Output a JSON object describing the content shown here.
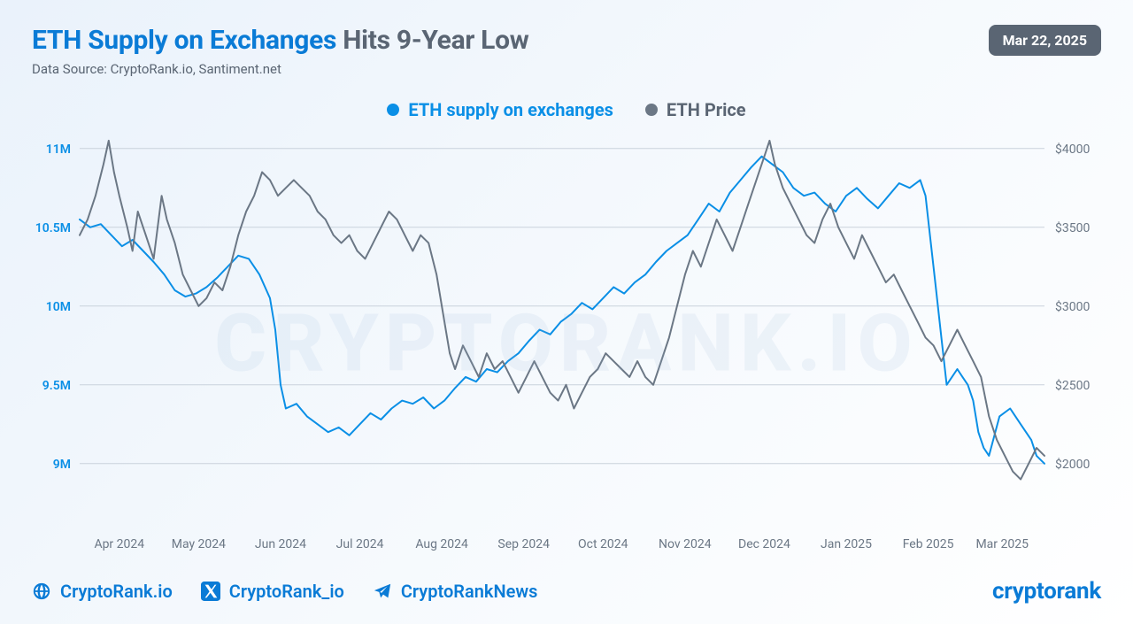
{
  "header": {
    "title_highlight": "ETH Supply on Exchanges",
    "title_rest": "Hits 9-Year Low",
    "subtitle": "Data Source: CryptoRank.io, Santiment.net",
    "date_badge": "Mar 22, 2025"
  },
  "legend": {
    "series1": {
      "label": "ETH supply on exchanges",
      "color": "#0a8fe6"
    },
    "series2": {
      "label": "ETH Price",
      "color": "#6b7785"
    }
  },
  "watermark": "CRYPTORANK.IO",
  "chart": {
    "type": "line-dual-axis",
    "background": "transparent",
    "grid_color": "#c9d2db",
    "x": {
      "domain": [
        0,
        365
      ],
      "ticks": [
        {
          "v": 15,
          "label": "Apr 2024"
        },
        {
          "v": 45,
          "label": "May 2024"
        },
        {
          "v": 76,
          "label": "Jun 2024"
        },
        {
          "v": 106,
          "label": "Jul 2024"
        },
        {
          "v": 137,
          "label": "Aug 2024"
        },
        {
          "v": 168,
          "label": "Sep 2024"
        },
        {
          "v": 198,
          "label": "Oct 2024"
        },
        {
          "v": 229,
          "label": "Nov 2024"
        },
        {
          "v": 259,
          "label": "Dec 2024"
        },
        {
          "v": 290,
          "label": "Jan 2025"
        },
        {
          "v": 321,
          "label": "Feb 2025"
        },
        {
          "v": 349,
          "label": "Mar 2025"
        }
      ]
    },
    "y_left": {
      "label_color": "#0a8fe6",
      "domain": [
        8600000,
        11100000
      ],
      "ticks": [
        {
          "v": 9000000,
          "label": "9M"
        },
        {
          "v": 9500000,
          "label": "9.5M"
        },
        {
          "v": 10000000,
          "label": "10M"
        },
        {
          "v": 10500000,
          "label": "10.5M"
        },
        {
          "v": 11000000,
          "label": "11M"
        }
      ]
    },
    "y_right": {
      "label_color": "#6b7785",
      "domain": [
        1600,
        4100
      ],
      "ticks": [
        {
          "v": 2000,
          "label": "$2000"
        },
        {
          "v": 2500,
          "label": "$2500"
        },
        {
          "v": 3000,
          "label": "$3000"
        },
        {
          "v": 3500,
          "label": "$3500"
        },
        {
          "v": 4000,
          "label": "$4000"
        }
      ]
    },
    "series": [
      {
        "name": "ETH supply on exchanges",
        "axis": "left",
        "color": "#0a8fe6",
        "width": 2,
        "points": [
          [
            0,
            10550000
          ],
          [
            4,
            10500000
          ],
          [
            8,
            10520000
          ],
          [
            12,
            10450000
          ],
          [
            16,
            10380000
          ],
          [
            20,
            10420000
          ],
          [
            24,
            10350000
          ],
          [
            28,
            10280000
          ],
          [
            32,
            10200000
          ],
          [
            36,
            10100000
          ],
          [
            40,
            10060000
          ],
          [
            44,
            10080000
          ],
          [
            48,
            10120000
          ],
          [
            52,
            10180000
          ],
          [
            56,
            10250000
          ],
          [
            60,
            10320000
          ],
          [
            64,
            10300000
          ],
          [
            68,
            10200000
          ],
          [
            72,
            10050000
          ],
          [
            74,
            9850000
          ],
          [
            76,
            9500000
          ],
          [
            78,
            9350000
          ],
          [
            82,
            9380000
          ],
          [
            86,
            9300000
          ],
          [
            90,
            9250000
          ],
          [
            94,
            9200000
          ],
          [
            98,
            9230000
          ],
          [
            102,
            9180000
          ],
          [
            106,
            9250000
          ],
          [
            110,
            9320000
          ],
          [
            114,
            9280000
          ],
          [
            118,
            9350000
          ],
          [
            122,
            9400000
          ],
          [
            126,
            9380000
          ],
          [
            130,
            9420000
          ],
          [
            134,
            9350000
          ],
          [
            138,
            9400000
          ],
          [
            142,
            9480000
          ],
          [
            146,
            9550000
          ],
          [
            150,
            9520000
          ],
          [
            154,
            9600000
          ],
          [
            158,
            9580000
          ],
          [
            162,
            9650000
          ],
          [
            166,
            9700000
          ],
          [
            170,
            9780000
          ],
          [
            174,
            9850000
          ],
          [
            178,
            9820000
          ],
          [
            182,
            9900000
          ],
          [
            186,
            9950000
          ],
          [
            190,
            10020000
          ],
          [
            194,
            9980000
          ],
          [
            198,
            10050000
          ],
          [
            202,
            10120000
          ],
          [
            206,
            10080000
          ],
          [
            210,
            10150000
          ],
          [
            214,
            10200000
          ],
          [
            218,
            10280000
          ],
          [
            222,
            10350000
          ],
          [
            226,
            10400000
          ],
          [
            230,
            10450000
          ],
          [
            234,
            10550000
          ],
          [
            238,
            10650000
          ],
          [
            242,
            10600000
          ],
          [
            246,
            10720000
          ],
          [
            250,
            10800000
          ],
          [
            254,
            10880000
          ],
          [
            258,
            10950000
          ],
          [
            262,
            10900000
          ],
          [
            266,
            10850000
          ],
          [
            270,
            10750000
          ],
          [
            274,
            10700000
          ],
          [
            278,
            10720000
          ],
          [
            282,
            10650000
          ],
          [
            286,
            10600000
          ],
          [
            290,
            10700000
          ],
          [
            294,
            10750000
          ],
          [
            298,
            10680000
          ],
          [
            302,
            10620000
          ],
          [
            306,
            10700000
          ],
          [
            310,
            10780000
          ],
          [
            314,
            10750000
          ],
          [
            318,
            10800000
          ],
          [
            320,
            10700000
          ],
          [
            322,
            10400000
          ],
          [
            324,
            10100000
          ],
          [
            326,
            9800000
          ],
          [
            328,
            9500000
          ],
          [
            330,
            9550000
          ],
          [
            332,
            9600000
          ],
          [
            334,
            9550000
          ],
          [
            336,
            9500000
          ],
          [
            338,
            9400000
          ],
          [
            340,
            9200000
          ],
          [
            342,
            9100000
          ],
          [
            344,
            9050000
          ],
          [
            348,
            9300000
          ],
          [
            352,
            9350000
          ],
          [
            356,
            9250000
          ],
          [
            360,
            9150000
          ],
          [
            362,
            9050000
          ],
          [
            365,
            9000000
          ]
        ]
      },
      {
        "name": "ETH Price",
        "axis": "right",
        "color": "#6b7785",
        "width": 2,
        "points": [
          [
            0,
            3450
          ],
          [
            3,
            3550
          ],
          [
            6,
            3700
          ],
          [
            9,
            3900
          ],
          [
            11,
            4050
          ],
          [
            13,
            3850
          ],
          [
            15,
            3700
          ],
          [
            18,
            3500
          ],
          [
            20,
            3350
          ],
          [
            22,
            3600
          ],
          [
            25,
            3450
          ],
          [
            28,
            3300
          ],
          [
            31,
            3700
          ],
          [
            33,
            3550
          ],
          [
            36,
            3400
          ],
          [
            39,
            3200
          ],
          [
            42,
            3100
          ],
          [
            45,
            3000
          ],
          [
            48,
            3050
          ],
          [
            51,
            3150
          ],
          [
            54,
            3100
          ],
          [
            57,
            3250
          ],
          [
            60,
            3450
          ],
          [
            63,
            3600
          ],
          [
            66,
            3700
          ],
          [
            69,
            3850
          ],
          [
            72,
            3800
          ],
          [
            75,
            3700
          ],
          [
            78,
            3750
          ],
          [
            81,
            3800
          ],
          [
            84,
            3750
          ],
          [
            87,
            3700
          ],
          [
            90,
            3600
          ],
          [
            93,
            3550
          ],
          [
            96,
            3450
          ],
          [
            99,
            3400
          ],
          [
            102,
            3450
          ],
          [
            105,
            3350
          ],
          [
            108,
            3300
          ],
          [
            111,
            3400
          ],
          [
            114,
            3500
          ],
          [
            117,
            3600
          ],
          [
            120,
            3550
          ],
          [
            123,
            3450
          ],
          [
            126,
            3350
          ],
          [
            129,
            3450
          ],
          [
            132,
            3400
          ],
          [
            135,
            3200
          ],
          [
            138,
            2900
          ],
          [
            140,
            2700
          ],
          [
            142,
            2600
          ],
          [
            145,
            2750
          ],
          [
            148,
            2650
          ],
          [
            151,
            2550
          ],
          [
            154,
            2700
          ],
          [
            157,
            2600
          ],
          [
            160,
            2650
          ],
          [
            163,
            2550
          ],
          [
            166,
            2450
          ],
          [
            169,
            2550
          ],
          [
            172,
            2650
          ],
          [
            175,
            2550
          ],
          [
            178,
            2450
          ],
          [
            181,
            2400
          ],
          [
            184,
            2500
          ],
          [
            187,
            2350
          ],
          [
            190,
            2450
          ],
          [
            193,
            2550
          ],
          [
            196,
            2600
          ],
          [
            199,
            2700
          ],
          [
            202,
            2650
          ],
          [
            205,
            2600
          ],
          [
            208,
            2550
          ],
          [
            211,
            2650
          ],
          [
            214,
            2550
          ],
          [
            217,
            2500
          ],
          [
            220,
            2650
          ],
          [
            223,
            2800
          ],
          [
            226,
            3000
          ],
          [
            229,
            3200
          ],
          [
            232,
            3350
          ],
          [
            235,
            3250
          ],
          [
            238,
            3400
          ],
          [
            241,
            3550
          ],
          [
            244,
            3450
          ],
          [
            247,
            3350
          ],
          [
            250,
            3500
          ],
          [
            253,
            3650
          ],
          [
            256,
            3800
          ],
          [
            259,
            3950
          ],
          [
            261,
            4050
          ],
          [
            263,
            3900
          ],
          [
            266,
            3750
          ],
          [
            269,
            3650
          ],
          [
            272,
            3550
          ],
          [
            275,
            3450
          ],
          [
            278,
            3400
          ],
          [
            281,
            3550
          ],
          [
            284,
            3650
          ],
          [
            287,
            3500
          ],
          [
            290,
            3400
          ],
          [
            293,
            3300
          ],
          [
            296,
            3450
          ],
          [
            299,
            3350
          ],
          [
            302,
            3250
          ],
          [
            305,
            3150
          ],
          [
            308,
            3200
          ],
          [
            311,
            3100
          ],
          [
            314,
            3000
          ],
          [
            317,
            2900
          ],
          [
            320,
            2800
          ],
          [
            323,
            2750
          ],
          [
            326,
            2650
          ],
          [
            329,
            2750
          ],
          [
            332,
            2850
          ],
          [
            335,
            2750
          ],
          [
            338,
            2650
          ],
          [
            341,
            2550
          ],
          [
            344,
            2300
          ],
          [
            347,
            2150
          ],
          [
            350,
            2050
          ],
          [
            353,
            1950
          ],
          [
            356,
            1900
          ],
          [
            359,
            2000
          ],
          [
            362,
            2100
          ],
          [
            365,
            2050
          ]
        ]
      }
    ]
  },
  "footer": {
    "socials": [
      {
        "icon": "globe",
        "label": "CryptoRank.io"
      },
      {
        "icon": "x",
        "label": "CryptoRank_io"
      },
      {
        "icon": "telegram",
        "label": "CryptoRankNews"
      }
    ],
    "brand": "cryptorank"
  }
}
